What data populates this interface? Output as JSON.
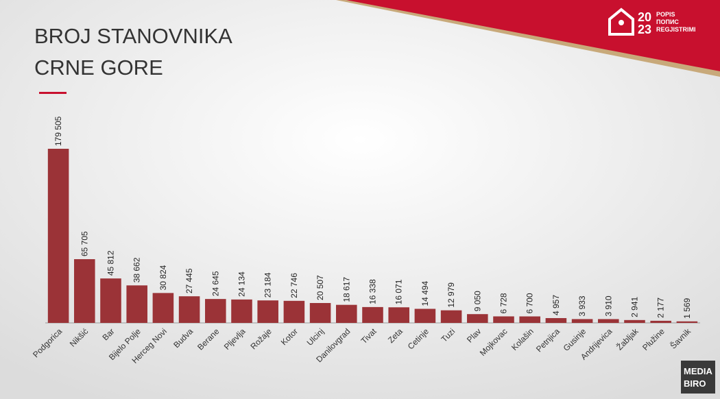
{
  "chart_data": {
    "type": "bar",
    "title": "BROJ STANOVNIKA CRNE GORE",
    "categories": [
      "Podgorica",
      "Nikšić",
      "Bar",
      "Bijelo Polje",
      "Herceg Novi",
      "Budva",
      "Berane",
      "Pljevlja",
      "Rožaje",
      "Kotor",
      "Ulcinj",
      "Danilovgrad",
      "Tivat",
      "Zeta",
      "Cetinje",
      "Tuzi",
      "Plav",
      "Mojkovac",
      "Kolašin",
      "Petnjica",
      "Gusinje",
      "Andrijevica",
      "Žabljak",
      "Plužine",
      "Šavnik"
    ],
    "values": [
      179505,
      65705,
      45812,
      38662,
      30824,
      27445,
      24645,
      24134,
      23184,
      22746,
      20507,
      18617,
      16338,
      16071,
      14494,
      12979,
      9050,
      6728,
      6700,
      4957,
      3933,
      3910,
      2941,
      2177,
      1569
    ],
    "value_labels": [
      "179 505",
      "65 705",
      "45 812",
      "38 662",
      "30 824",
      "27 445",
      "24 645",
      "24 134",
      "23 184",
      "22 746",
      "20 507",
      "18 617",
      "16 338",
      "16 071",
      "14 494",
      "12 979",
      "9 050",
      "6 728",
      "6 700",
      "4 957",
      "3 933",
      "3 910",
      "2 941",
      "2 177",
      "1 569"
    ],
    "color": "#9b3337",
    "ylim": [
      0,
      180000
    ]
  },
  "logo": {
    "year_top": "20",
    "year_bottom": "23",
    "line1": "POPIS",
    "line2": "ПОПИС",
    "line3": "REGJISTRIMI"
  },
  "watermark": {
    "line1": "MEDIA",
    "line2": "BIRO"
  }
}
